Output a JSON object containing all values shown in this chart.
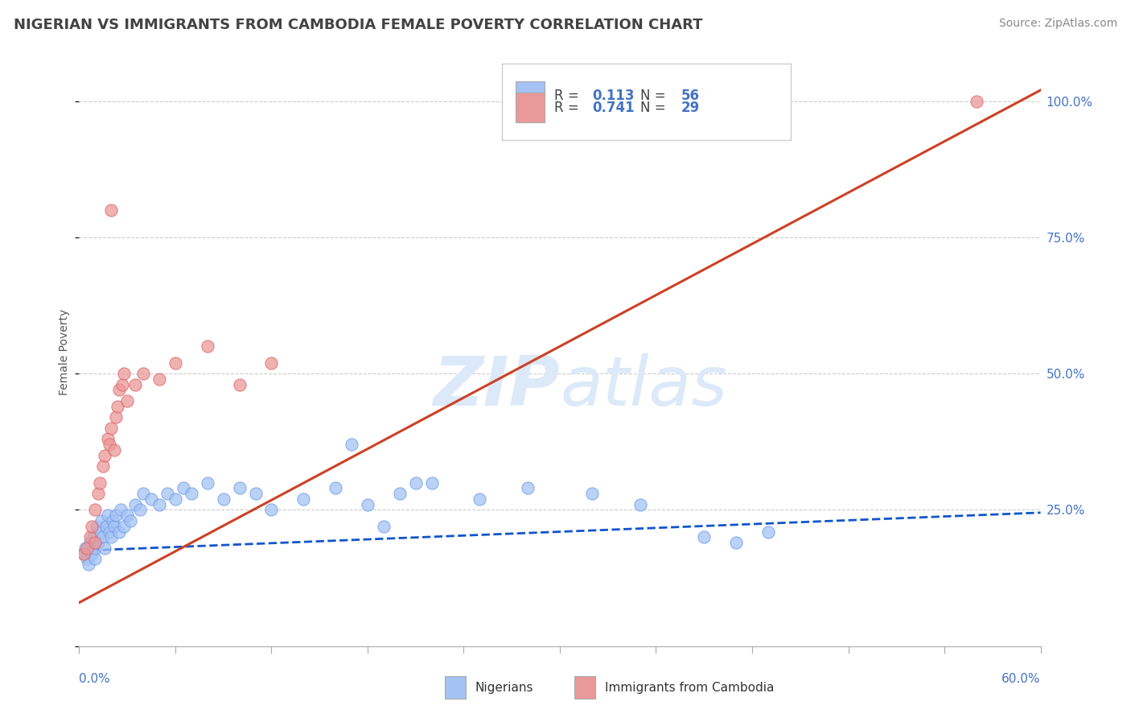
{
  "title": "NIGERIAN VS IMMIGRANTS FROM CAMBODIA FEMALE POVERTY CORRELATION CHART",
  "source": "Source: ZipAtlas.com",
  "ylabel": "Female Poverty",
  "xmin": 0.0,
  "xmax": 0.6,
  "ymin": 0.0,
  "ymax": 1.08,
  "nigerians_R": 0.113,
  "nigerians_N": 56,
  "cambodia_R": 0.741,
  "cambodia_N": 29,
  "blue_color": "#a4c2f4",
  "blue_edge": "#6d9eeb",
  "pink_color": "#ea9999",
  "pink_edge": "#e06666",
  "blue_line_color": "#1155cc",
  "pink_line_color": "#cc4125",
  "title_color": "#434343",
  "source_color": "#888888",
  "axis_label_color": "#4472c4",
  "legend_text_color": "#434343",
  "legend_num_color": "#4472c4",
  "watermark_color": "#dce9f8",
  "background_color": "#ffffff",
  "grid_color": "#cccccc",
  "right_ytick_vals": [
    0.0,
    0.25,
    0.5,
    0.75,
    1.0
  ],
  "nigerians_x": [
    0.003,
    0.004,
    0.005,
    0.006,
    0.007,
    0.008,
    0.009,
    0.01,
    0.01,
    0.011,
    0.012,
    0.013,
    0.014,
    0.015,
    0.016,
    0.017,
    0.018,
    0.019,
    0.02,
    0.021,
    0.022,
    0.023,
    0.025,
    0.026,
    0.028,
    0.03,
    0.032,
    0.035,
    0.038,
    0.04,
    0.045,
    0.05,
    0.055,
    0.06,
    0.065,
    0.07,
    0.08,
    0.09,
    0.1,
    0.11,
    0.12,
    0.14,
    0.16,
    0.18,
    0.2,
    0.22,
    0.25,
    0.28,
    0.32,
    0.35,
    0.17,
    0.19,
    0.21,
    0.39,
    0.41,
    0.43
  ],
  "nigerians_y": [
    0.17,
    0.18,
    0.16,
    0.15,
    0.19,
    0.17,
    0.2,
    0.16,
    0.18,
    0.22,
    0.19,
    0.21,
    0.23,
    0.2,
    0.18,
    0.22,
    0.24,
    0.21,
    0.2,
    0.23,
    0.22,
    0.24,
    0.21,
    0.25,
    0.22,
    0.24,
    0.23,
    0.26,
    0.25,
    0.28,
    0.27,
    0.26,
    0.28,
    0.27,
    0.29,
    0.28,
    0.3,
    0.27,
    0.29,
    0.28,
    0.25,
    0.27,
    0.29,
    0.26,
    0.28,
    0.3,
    0.27,
    0.29,
    0.28,
    0.26,
    0.37,
    0.22,
    0.3,
    0.2,
    0.19,
    0.21
  ],
  "cambodia_x": [
    0.003,
    0.005,
    0.007,
    0.008,
    0.01,
    0.01,
    0.012,
    0.013,
    0.015,
    0.016,
    0.018,
    0.019,
    0.02,
    0.022,
    0.023,
    0.024,
    0.025,
    0.027,
    0.028,
    0.03,
    0.035,
    0.04,
    0.05,
    0.06,
    0.08,
    0.1,
    0.12,
    0.56,
    0.02
  ],
  "cambodia_y": [
    0.17,
    0.18,
    0.2,
    0.22,
    0.25,
    0.19,
    0.28,
    0.3,
    0.33,
    0.35,
    0.38,
    0.37,
    0.4,
    0.36,
    0.42,
    0.44,
    0.47,
    0.48,
    0.5,
    0.45,
    0.48,
    0.5,
    0.49,
    0.52,
    0.55,
    0.48,
    0.52,
    1.0,
    0.8
  ],
  "nigeria_trendline_x": [
    0.0,
    0.6
  ],
  "nigeria_trendline_y": [
    0.175,
    0.245
  ],
  "cambodia_trendline_x": [
    0.0,
    0.6
  ],
  "cambodia_trendline_y": [
    0.08,
    1.02
  ]
}
